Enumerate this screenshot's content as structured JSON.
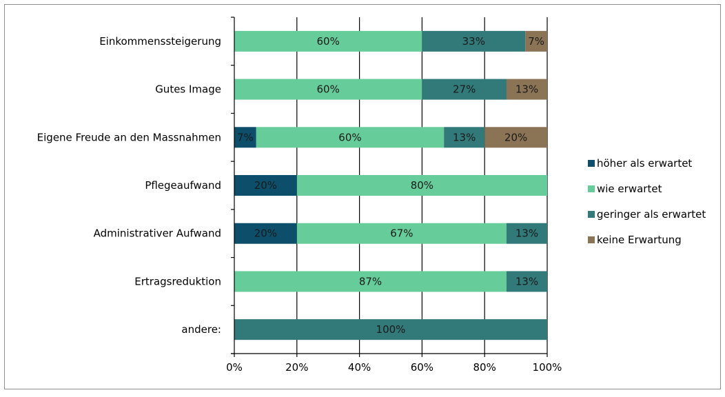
{
  "chart_data": {
    "type": "bar",
    "orientation": "horizontal",
    "stacked": "percent",
    "categories": [
      "Einkommenssteigerung",
      "Gutes Image",
      "Eigene Freude an den Massnahmen",
      "Pflegeaufwand",
      "Administrativer Aufwand",
      "Ertragsreduktion",
      "andere:"
    ],
    "series": [
      {
        "name": "höher als erwartet",
        "color": "#0d4f6b",
        "values": [
          0,
          0,
          7,
          20,
          20,
          0,
          0
        ]
      },
      {
        "name": "wie erwartet",
        "color": "#66cc99",
        "values": [
          60,
          60,
          60,
          80,
          67,
          87,
          0
        ]
      },
      {
        "name": "geringer als erwartet",
        "color": "#327979",
        "values": [
          33,
          27,
          13,
          0,
          13,
          13,
          100
        ]
      },
      {
        "name": "keine Erwartung",
        "color": "#8b7355",
        "values": [
          7,
          13,
          20,
          0,
          0,
          0,
          0
        ]
      }
    ],
    "xlim": [
      0,
      100
    ],
    "xticks": [
      "0%",
      "20%",
      "40%",
      "60%",
      "80%",
      "100%"
    ],
    "grid": "vertical",
    "legend": "right"
  }
}
